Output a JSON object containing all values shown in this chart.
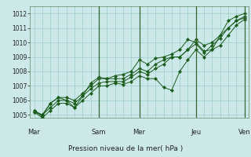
{
  "title": "Pression niveau de la mer( hPa )",
  "ylim": [
    1004.8,
    1012.5
  ],
  "yticks": [
    1005,
    1006,
    1007,
    1008,
    1009,
    1010,
    1011,
    1012
  ],
  "background_color": "#cce8e8",
  "grid_color": "#99cccc",
  "line_color": "#1a5c1a",
  "marker_color": "#1a5c1a",
  "vline_color": "#336633",
  "day_labels": [
    "Mar",
    "Sam",
    "Mer",
    "Jeu",
    "Ven"
  ],
  "series": [
    [
      1005.3,
      1004.9,
      1005.8,
      1006.2,
      1006.0,
      1005.5,
      1006.3,
      1007.2,
      1007.6,
      1007.5,
      1007.7,
      1007.8,
      1008.0,
      1008.8,
      1008.5,
      1008.9,
      1009.0,
      1009.2,
      1009.5,
      1010.2,
      1010.0,
      1009.4,
      1009.5,
      1010.5,
      1011.5,
      1011.8,
      1012.0
    ],
    [
      1005.3,
      1005.0,
      1005.8,
      1006.2,
      1006.2,
      1006.0,
      1006.5,
      1007.0,
      1007.5,
      1007.5,
      1007.5,
      1007.5,
      1007.8,
      1008.2,
      1008.0,
      1008.5,
      1008.8,
      1009.0,
      1009.0,
      1009.5,
      1010.2,
      1009.8,
      1010.0,
      1010.5,
      1011.0,
      1011.5,
      1011.8
    ],
    [
      1005.2,
      1005.0,
      1005.5,
      1006.0,
      1006.0,
      1005.8,
      1006.3,
      1006.8,
      1007.2,
      1007.3,
      1007.3,
      1007.3,
      1007.6,
      1008.0,
      1007.8,
      1008.2,
      1008.5,
      1009.0,
      1009.0,
      1009.5,
      1009.9,
      1009.3,
      1009.8,
      1010.3,
      1011.0,
      1011.5,
      1011.7
    ],
    [
      1005.2,
      1004.8,
      1005.3,
      1005.8,
      1005.8,
      1005.5,
      1006.0,
      1006.5,
      1007.0,
      1007.0,
      1007.2,
      1007.1,
      1007.3,
      1007.7,
      1007.5,
      1007.5,
      1006.9,
      1006.7,
      1008.0,
      1008.8,
      1009.5,
      1009.0,
      1009.5,
      1009.8,
      1010.5,
      1011.2,
      1011.6
    ]
  ],
  "n_points": 27,
  "day_x_positions": [
    0,
    8,
    13,
    20,
    26
  ],
  "vline_indices": [
    8,
    13,
    20,
    26
  ]
}
